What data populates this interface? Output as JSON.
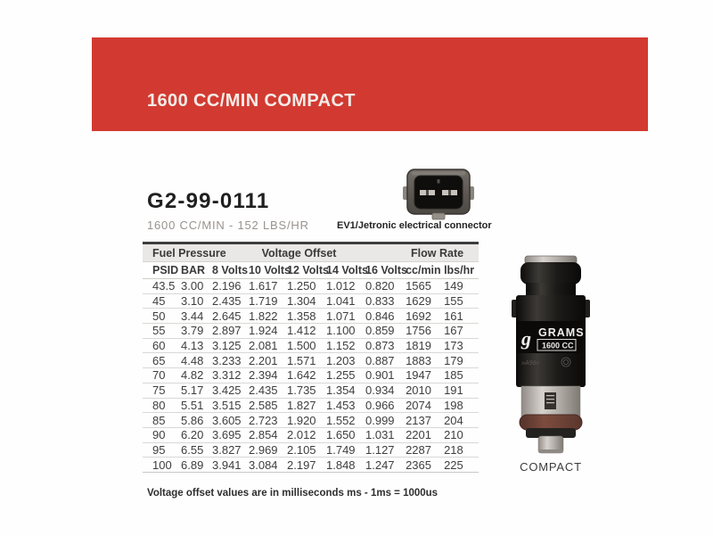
{
  "banner": {
    "title": "1600 CC/MIN COMPACT"
  },
  "colors": {
    "banner_red": "#d23a31",
    "banner_text": "#f3ece8",
    "table_header_bg": "#e9e8e6",
    "table_top_border": "#3d3d3d",
    "row_line": "#dad8d5",
    "body_text": "#3e3e3e",
    "subtitle_gray": "#98938e",
    "oring_brown": "#6f4337"
  },
  "product": {
    "part_number": "G2-99-0111",
    "flow_subtitle": "1600 CC/MIN - 152 LBS/HR",
    "connector_caption": "EV1/Jetronic electrical connector"
  },
  "icons": {
    "connector": "ev1-connector-icon",
    "injector": "fuel-injector-photo"
  },
  "table": {
    "group_headers": [
      {
        "label": "Fuel Pressure",
        "span": 2,
        "align": "left"
      },
      {
        "label": "Voltage Offset",
        "span": 5,
        "align": "center"
      },
      {
        "label": "Flow Rate",
        "span": 2,
        "align": "center"
      }
    ],
    "columns": [
      "PSID",
      "BAR",
      "8 Volts",
      "10 Volts",
      "12 Volts",
      "14 Volts",
      "16 Volts",
      "cc/min",
      "lbs/hr"
    ],
    "rows": [
      [
        "43.5",
        "3.00",
        "2.196",
        "1.617",
        "1.250",
        "1.012",
        "0.820",
        "1565",
        "149"
      ],
      [
        "45",
        "3.10",
        "2.435",
        "1.719",
        "1.304",
        "1.041",
        "0.833",
        "1629",
        "155"
      ],
      [
        "50",
        "3.44",
        "2.645",
        "1.822",
        "1.358",
        "1.071",
        "0.846",
        "1692",
        "161"
      ],
      [
        "55",
        "3.79",
        "2.897",
        "1.924",
        "1.412",
        "1.100",
        "0.859",
        "1756",
        "167"
      ],
      [
        "60",
        "4.13",
        "3.125",
        "2.081",
        "1.500",
        "1.152",
        "0.873",
        "1819",
        "173"
      ],
      [
        "65",
        "4.48",
        "3.233",
        "2.201",
        "1.571",
        "1.203",
        "0.887",
        "1883",
        "179"
      ],
      [
        "70",
        "4.82",
        "3.312",
        "2.394",
        "1.642",
        "1.255",
        "0.901",
        "1947",
        "185"
      ],
      [
        "75",
        "5.17",
        "3.425",
        "2.435",
        "1.735",
        "1.354",
        "0.934",
        "2010",
        "191"
      ],
      [
        "80",
        "5.51",
        "3.515",
        "2.585",
        "1.827",
        "1.453",
        "0.966",
        "2074",
        "198"
      ],
      [
        "85",
        "5.86",
        "3.605",
        "2.723",
        "1.920",
        "1.552",
        "0.999",
        "2137",
        "204"
      ],
      [
        "90",
        "6.20",
        "3.695",
        "2.854",
        "2.012",
        "1.650",
        "1.031",
        "2201",
        "210"
      ],
      [
        "95",
        "6.55",
        "3.827",
        "2.969",
        "2.105",
        "1.749",
        "1.127",
        "2287",
        "218"
      ],
      [
        "100",
        "6.89",
        "3.941",
        "3.084",
        "2.197",
        "1.848",
        "1.247",
        "2365",
        "225"
      ]
    ]
  },
  "injector": {
    "label_brand": "GRAMS",
    "label_model": "1600 CC",
    "caption": "COMPACT"
  },
  "footnote": "Voltage offset values are in milliseconds ms - 1ms = 1000us"
}
